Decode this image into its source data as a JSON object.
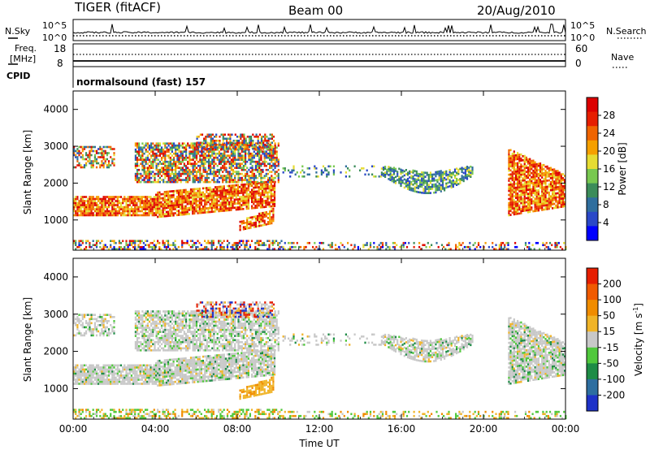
{
  "header": {
    "title": "TIGER (fitACF)",
    "beam": "Beam 00",
    "date": "20/Aug/2010"
  },
  "top_panels": {
    "nsky_label": "N.Sky",
    "nsky_ticks": [
      "10^5",
      "10^0"
    ],
    "nsearch_label": "N.Search",
    "nsearch_ticks": [
      "10^5",
      "10^0"
    ],
    "freq_label": "Freq.",
    "freq_unit": "[MHz]",
    "freq_ticks": [
      "18",
      "8"
    ],
    "nave_label": "Nave",
    "nave_ticks": [
      "60",
      "0"
    ],
    "cpid_label": "CPID",
    "cpid_text": "normalsound (fast) 157"
  },
  "chart_data": [
    {
      "type": "heatmap",
      "name": "power",
      "ylabel": "Slant Range [km]",
      "ylim": [
        180,
        4500
      ],
      "yticks": [
        1000,
        2000,
        3000,
        4000
      ],
      "xlim": [
        0,
        24
      ],
      "xticks": [
        "00:00",
        "04:00",
        "08:00",
        "12:00",
        "16:00",
        "20:00",
        "00:00"
      ],
      "colorbar": {
        "label": "Power [dB]",
        "ticks": [
          "4",
          "8",
          "12",
          "16",
          "20",
          "24",
          "28"
        ],
        "min": 0,
        "max": 32,
        "colors": [
          "#0000ff",
          "#2a48c8",
          "#2f6e9e",
          "#3b8c5a",
          "#78c850",
          "#e6dc32",
          "#f5a000",
          "#f06400",
          "#e61e00",
          "#dc0000"
        ]
      }
    },
    {
      "type": "heatmap",
      "name": "velocity",
      "ylabel": "Slant Range [km]",
      "ylim": [
        180,
        4500
      ],
      "yticks": [
        1000,
        2000,
        3000,
        4000
      ],
      "xlim": [
        0,
        24
      ],
      "xticks": [
        "00:00",
        "04:00",
        "08:00",
        "12:00",
        "16:00",
        "20:00",
        "00:00"
      ],
      "xlabel": "Time UT",
      "colorbar": {
        "label": "Velocity [m s",
        "label_sup": "-1",
        "label_end": "]",
        "ticks": [
          "200",
          "100",
          "50",
          "15",
          "-15",
          "-50",
          "-100",
          "-200"
        ],
        "colors": [
          "#1e32c8",
          "#2d6ea0",
          "#1e8c46",
          "#50c83c",
          "#c8c8c8",
          "#f0b428",
          "#f08c00",
          "#f05a00",
          "#e61e00"
        ]
      }
    }
  ],
  "range_features": [
    {
      "t0": 0.0,
      "t1": 10.2,
      "r0": 180,
      "r1": 420,
      "kind": "ground",
      "dens": 0.45
    },
    {
      "t0": 0.0,
      "t1": 4.0,
      "r0": 1100,
      "r1": 1650,
      "kind": "band",
      "dens": 0.9
    },
    {
      "t0": 4.0,
      "t1": 9.8,
      "r0": 1050,
      "r1": 1750,
      "kind": "band_rise",
      "dens": 0.85
    },
    {
      "t0": 0.0,
      "t1": 2.0,
      "r0": 2400,
      "r1": 3000,
      "kind": "top",
      "dens": 0.5
    },
    {
      "t0": 3.0,
      "t1": 10.0,
      "r0": 2000,
      "r1": 3100,
      "kind": "top",
      "dens": 0.7
    },
    {
      "t0": 8.1,
      "t1": 9.8,
      "r0": 700,
      "r1": 1250,
      "kind": "tongue",
      "dens": 0.8
    },
    {
      "t0": 6.0,
      "t1": 9.8,
      "r0": 2900,
      "r1": 3300,
      "kind": "crown",
      "dens": 0.6
    },
    {
      "t0": 10.2,
      "t1": 15.0,
      "r0": 2150,
      "r1": 2450,
      "kind": "sparse",
      "dens": 0.18
    },
    {
      "t0": 15.0,
      "t1": 19.5,
      "r0": 1700,
      "r1": 2450,
      "kind": "arc",
      "dens": 0.7
    },
    {
      "t0": 21.2,
      "t1": 24.0,
      "r0": 1100,
      "r1": 2900,
      "kind": "late",
      "dens": 0.85
    },
    {
      "t0": 10.2,
      "t1": 24.0,
      "r0": 180,
      "r1": 380,
      "kind": "ground",
      "dens": 0.3
    }
  ]
}
